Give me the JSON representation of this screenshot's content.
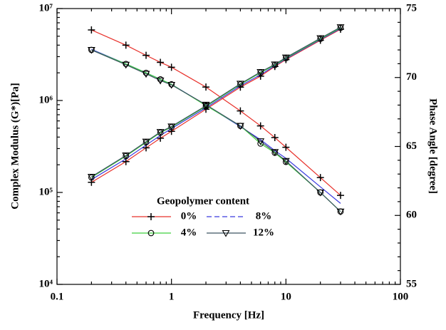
{
  "chart_data": {
    "type": "line",
    "x_label": "Frequency [Hz]",
    "y_label": "Complex Modulus (G*)[Pa]",
    "y2_label": "Phase Angle [degree]",
    "legend_title": "Geopolymer content",
    "x_log": true,
    "y_log": true,
    "xlim": [
      0.1,
      100
    ],
    "xticks": [
      0.1,
      1,
      10,
      100
    ],
    "ylim": [
      10000,
      10000000
    ],
    "yticks": [
      {
        "value": 10000,
        "label": "10⁴"
      },
      {
        "value": 100000,
        "label": "10⁵"
      },
      {
        "value": 1000000,
        "label": "10⁶"
      },
      {
        "value": 10000000,
        "label": "10⁷"
      }
    ],
    "y2lim": [
      55,
      75
    ],
    "y2ticks": [
      55,
      60,
      65,
      70,
      75
    ],
    "x": [
      0.2,
      0.4,
      0.6,
      0.8,
      1,
      2,
      4,
      6,
      8,
      10,
      20,
      30
    ],
    "series": [
      {
        "name": "0%",
        "color": "#e8302a",
        "marker": "plus",
        "dash": false,
        "values": [
          5850000,
          4000000,
          3100000,
          2600000,
          2300000,
          1400000,
          770000,
          530000,
          395000,
          310000,
          145000,
          93000
        ],
        "y2_values": [
          62.4,
          63.9,
          64.9,
          65.6,
          66.1,
          67.7,
          69.3,
          70.1,
          70.8,
          71.3,
          72.7,
          73.5
        ]
      },
      {
        "name": "8%",
        "color": "#3a3adf",
        "marker": "none",
        "dash": true,
        "values": [
          3600000,
          2500000,
          2000000,
          1700000,
          1500000,
          890000,
          520000,
          375000,
          285000,
          235000,
          115000,
          76000
        ],
        "y2_values": [
          62.6,
          64.1,
          65.1,
          65.8,
          66.3,
          67.8,
          69.4,
          70.2,
          70.85,
          71.35,
          72.75,
          73.55
        ]
      },
      {
        "name": "4%",
        "color": "#3fd13f",
        "marker": "circle",
        "dash": false,
        "values": [
          3550000,
          2500000,
          2000000,
          1700000,
          1500000,
          880000,
          530000,
          340000,
          270000,
          215000,
          100000,
          62000
        ],
        "y2_values": [
          62.75,
          64.3,
          65.3,
          66.0,
          66.4,
          67.9,
          69.5,
          70.35,
          70.9,
          71.4,
          72.8,
          73.6
        ]
      },
      {
        "name": "12%",
        "color": "#3c5460",
        "marker": "triangle",
        "dash": false,
        "values": [
          3550000,
          2450000,
          1950000,
          1650000,
          1480000,
          900000,
          530000,
          360000,
          275000,
          220000,
          100000,
          62000
        ],
        "y2_values": [
          62.8,
          64.35,
          65.35,
          66.05,
          66.45,
          67.95,
          69.55,
          70.4,
          70.95,
          71.45,
          72.85,
          73.65
        ]
      }
    ]
  }
}
